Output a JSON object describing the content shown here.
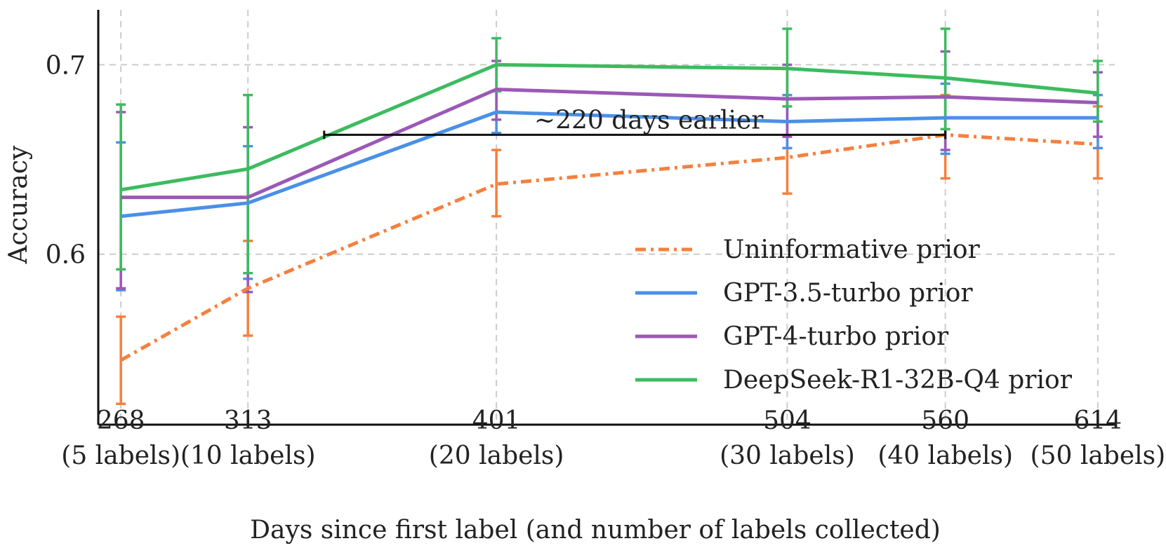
{
  "chart_data": {
    "type": "line",
    "title": "",
    "xlabel": "Days since first label (and number of labels collected)",
    "ylabel": "Accuracy",
    "x": [
      268,
      313,
      401,
      504,
      560,
      614
    ],
    "x_tick_labels": [
      [
        "268",
        "(5 labels)"
      ],
      [
        "313",
        "(10 labels)"
      ],
      [
        "401",
        "(20 labels)"
      ],
      [
        "504",
        "(30 labels)"
      ],
      [
        "560",
        "(40 labels)"
      ],
      [
        "614",
        "(50 labels)"
      ]
    ],
    "yticks": [
      0.6,
      0.7
    ],
    "ytick_labels": [
      "0.6",
      "0.7"
    ],
    "xlim": [
      260,
      620
    ],
    "ylim": [
      0.51,
      0.729
    ],
    "grid": true,
    "legend_position": "lower-right",
    "series": [
      {
        "name": "Uninformative prior",
        "color": "#f5803e",
        "style": "dashdot",
        "values": [
          0.544,
          0.582,
          0.637,
          0.651,
          0.663,
          0.658
        ],
        "err_low": [
          0.521,
          0.557,
          0.62,
          0.632,
          0.64,
          0.64
        ],
        "err_high": [
          0.567,
          0.607,
          0.655,
          0.67,
          0.684,
          0.678
        ]
      },
      {
        "name": "GPT-3.5-turbo prior",
        "color": "#4a90e8",
        "style": "solid",
        "values": [
          0.62,
          0.627,
          0.675,
          0.67,
          0.672,
          0.672
        ],
        "err_low": [
          0.581,
          0.587,
          0.664,
          0.656,
          0.653,
          0.656
        ],
        "err_high": [
          0.659,
          0.657,
          0.686,
          0.684,
          0.69,
          0.684
        ]
      },
      {
        "name": "GPT-4-turbo prior",
        "color": "#9b59b6",
        "style": "solid",
        "values": [
          0.63,
          0.63,
          0.687,
          0.682,
          0.683,
          0.68
        ],
        "err_low": [
          0.582,
          0.58,
          0.671,
          0.662,
          0.655,
          0.662
        ],
        "err_high": [
          0.675,
          0.667,
          0.702,
          0.7,
          0.707,
          0.696
        ]
      },
      {
        "name": "DeepSeek-R1-32B-Q4 prior",
        "color": "#3dbb5f",
        "style": "solid",
        "values": [
          0.634,
          0.645,
          0.7,
          0.698,
          0.693,
          0.685
        ],
        "err_low": [
          0.592,
          0.59,
          0.686,
          0.678,
          0.666,
          0.67
        ],
        "err_high": [
          0.679,
          0.684,
          0.714,
          0.719,
          0.719,
          0.702
        ]
      }
    ],
    "annotations": [
      {
        "text": "~220 days earlier",
        "display_text": "∼220 days earlier",
        "x_start": 340,
        "x_end": 560,
        "y": 0.663
      }
    ]
  }
}
